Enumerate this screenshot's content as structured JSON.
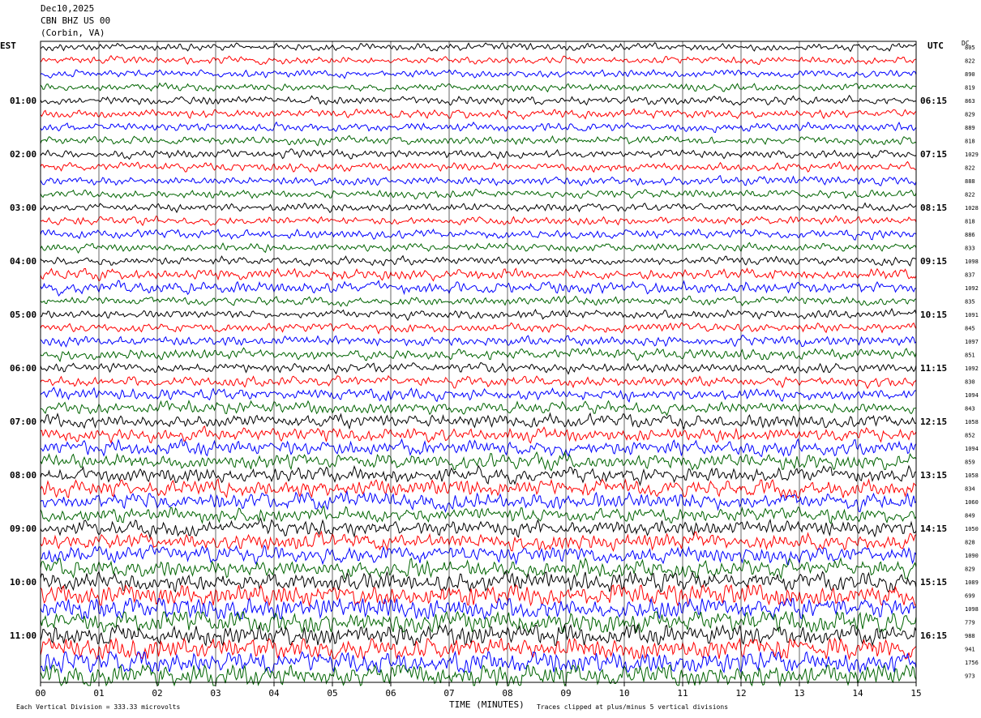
{
  "header": {
    "date": "Dec10,2025",
    "station": "CBN BHZ US 00",
    "location": "(Corbin, VA)"
  },
  "left_axis_label": "EST",
  "right_axis_label": "UTC",
  "dc_label": "DC",
  "footer": {
    "xlabel": "TIME (MINUTES)",
    "division_note": "Each Vertical Division =  333.33 microvolts",
    "clip_note": "Traces clipped at plus/minus 5 vertical divisions"
  },
  "chart_data": {
    "type": "line",
    "title": "CBN BHZ US 00",
    "xlabel": "TIME (MINUTES)",
    "xlim": [
      0,
      15
    ],
    "x_ticks": [
      "00",
      "01",
      "02",
      "03",
      "04",
      "05",
      "06",
      "07",
      "08",
      "09",
      "10",
      "11",
      "12",
      "13",
      "14",
      "15"
    ],
    "est_hour_labels": [
      "01:00",
      "02:00",
      "03:00",
      "04:00",
      "05:00",
      "06:00",
      "07:00",
      "08:00",
      "09:00",
      "10:00",
      "11:00"
    ],
    "utc_hour_labels": [
      "06:15",
      "07:15",
      "08:15",
      "09:15",
      "10:15",
      "11:15",
      "12:15",
      "13:15",
      "14:15",
      "15:15",
      "16:15"
    ],
    "trace_colors": [
      "#000000",
      "#ff0000",
      "#0000ff",
      "#006400"
    ],
    "trace_amplitudes": [
      1,
      1,
      1,
      1,
      1.1,
      1.1,
      1.2,
      1.1,
      1.1,
      1.1,
      1.1,
      1.1,
      1.1,
      1.1,
      1.2,
      1.1,
      1.1,
      1.4,
      1.6,
      1.1,
      1.2,
      1.2,
      1.3,
      1.4,
      1.3,
      1.4,
      1.5,
      1.6,
      1.8,
      1.8,
      2,
      2,
      2,
      2.2,
      2.4,
      2,
      2.1,
      2.2,
      2.3,
      2.5,
      2.5,
      3,
      3,
      3,
      3,
      3,
      3,
      3
    ],
    "dc_offsets": [
      "805",
      "822",
      "890",
      "819",
      "863",
      "829",
      "889",
      "818",
      "1029",
      "822",
      "888",
      "822",
      "1028",
      "818",
      "886",
      "833",
      "1098",
      "837",
      "1092",
      "835",
      "1091",
      "845",
      "1097",
      "851",
      "1092",
      "830",
      "1094",
      "843",
      "1058",
      "852",
      "1094",
      "859",
      "1058",
      "834",
      "1060",
      "849",
      "1050",
      "828",
      "1090",
      "829",
      "1089",
      "699",
      "1098",
      "779",
      "988",
      "941",
      "1756",
      "973"
    ]
  }
}
